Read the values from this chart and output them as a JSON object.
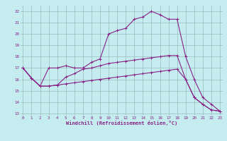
{
  "xlabel": "Windchill (Refroidissement éolien,°C)",
  "x_ticks": [
    0,
    1,
    2,
    3,
    4,
    5,
    6,
    7,
    8,
    9,
    10,
    11,
    12,
    13,
    14,
    15,
    16,
    17,
    18,
    19,
    20,
    21,
    22,
    23
  ],
  "ylim": [
    12.8,
    22.5
  ],
  "xlim": [
    -0.3,
    23.3
  ],
  "yticks": [
    13,
    14,
    15,
    16,
    17,
    18,
    19,
    20,
    21,
    22
  ],
  "bg_color": "#c5ecee",
  "grid_color": "#9bbcbe",
  "line_color": "#882288",
  "line1_y": [
    17.0,
    16.1,
    15.4,
    17.0,
    17.0,
    17.2,
    17.0,
    17.0,
    17.5,
    17.8,
    20.0,
    20.3,
    20.5,
    21.3,
    21.5,
    22.0,
    21.7,
    21.3,
    21.3,
    18.0,
    16.0,
    14.4,
    13.8,
    13.2
  ],
  "line2_y": [
    17.0,
    16.1,
    15.4,
    15.4,
    15.5,
    16.2,
    16.5,
    16.9,
    17.0,
    17.2,
    17.4,
    17.5,
    17.6,
    17.7,
    17.8,
    17.9,
    18.0,
    18.1,
    18.1,
    16.0,
    14.4,
    13.8,
    13.3,
    13.2
  ],
  "line3_y": [
    17.0,
    16.1,
    15.4,
    15.4,
    15.5,
    15.6,
    15.7,
    15.8,
    15.9,
    16.0,
    16.1,
    16.2,
    16.3,
    16.4,
    16.5,
    16.6,
    16.7,
    16.8,
    16.9,
    16.0,
    14.4,
    13.8,
    13.3,
    13.2
  ]
}
